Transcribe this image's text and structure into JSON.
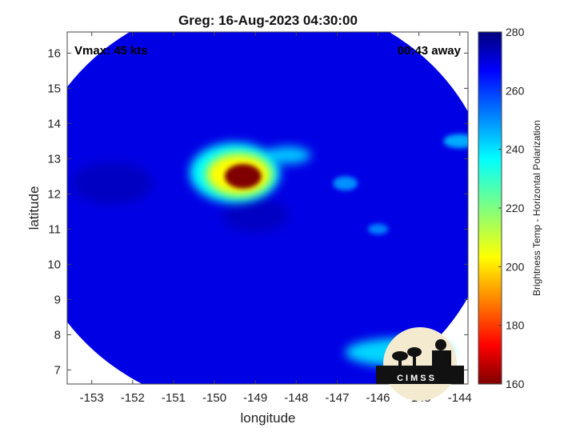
{
  "chart_data": {
    "type": "heatmap",
    "title": "Greg: 16-Aug-2023 04:30:00",
    "xlabel": "longitude",
    "ylabel": "latitude",
    "xlim": [
      -153.6,
      -143.8
    ],
    "ylim": [
      6.6,
      16.6
    ],
    "xticks": [
      -153,
      -152,
      -151,
      -150,
      -149,
      -148,
      -147,
      -146,
      -145,
      -144
    ],
    "yticks": [
      7,
      8,
      9,
      10,
      11,
      12,
      13,
      14,
      15,
      16
    ],
    "colorbar": {
      "label": "Brightness Temp - Horizontal Polarization",
      "range": [
        160,
        280
      ],
      "ticks": [
        160,
        180,
        200,
        220,
        240,
        260,
        280
      ],
      "colormap": "jet"
    },
    "swath": {
      "center": [
        -148.9,
        11.7
      ],
      "rx_deg": 5.7,
      "ry_deg": 5.9
    },
    "background_level": 268,
    "features": [
      {
        "lon": -149.3,
        "lat": 12.5,
        "rx": 0.45,
        "ry": 0.35,
        "value": 160
      },
      {
        "lon": -149.4,
        "lat": 12.55,
        "rx": 0.8,
        "ry": 0.6,
        "value": 205
      },
      {
        "lon": -149.5,
        "lat": 12.6,
        "rx": 1.1,
        "ry": 0.85,
        "value": 235
      },
      {
        "lon": -148.2,
        "lat": 13.1,
        "rx": 0.55,
        "ry": 0.25,
        "value": 242
      },
      {
        "lon": -145.5,
        "lat": 7.5,
        "rx": 1.3,
        "ry": 0.4,
        "value": 240
      },
      {
        "lon": -144.0,
        "lat": 13.5,
        "rx": 0.4,
        "ry": 0.2,
        "value": 245
      },
      {
        "lon": -146.8,
        "lat": 12.3,
        "rx": 0.3,
        "ry": 0.2,
        "value": 248
      },
      {
        "lon": -146.0,
        "lat": 11.0,
        "rx": 0.25,
        "ry": 0.15,
        "value": 250
      },
      {
        "lon": -149.0,
        "lat": 11.4,
        "rx": 0.8,
        "ry": 0.5,
        "value": 272
      },
      {
        "lon": -152.5,
        "lat": 12.3,
        "rx": 1.0,
        "ry": 0.6,
        "value": 272
      }
    ]
  },
  "overlay": {
    "vmax": "Vmax: 45 kts",
    "away": "00:43 away"
  },
  "logo": {
    "text": "CIMSS"
  }
}
